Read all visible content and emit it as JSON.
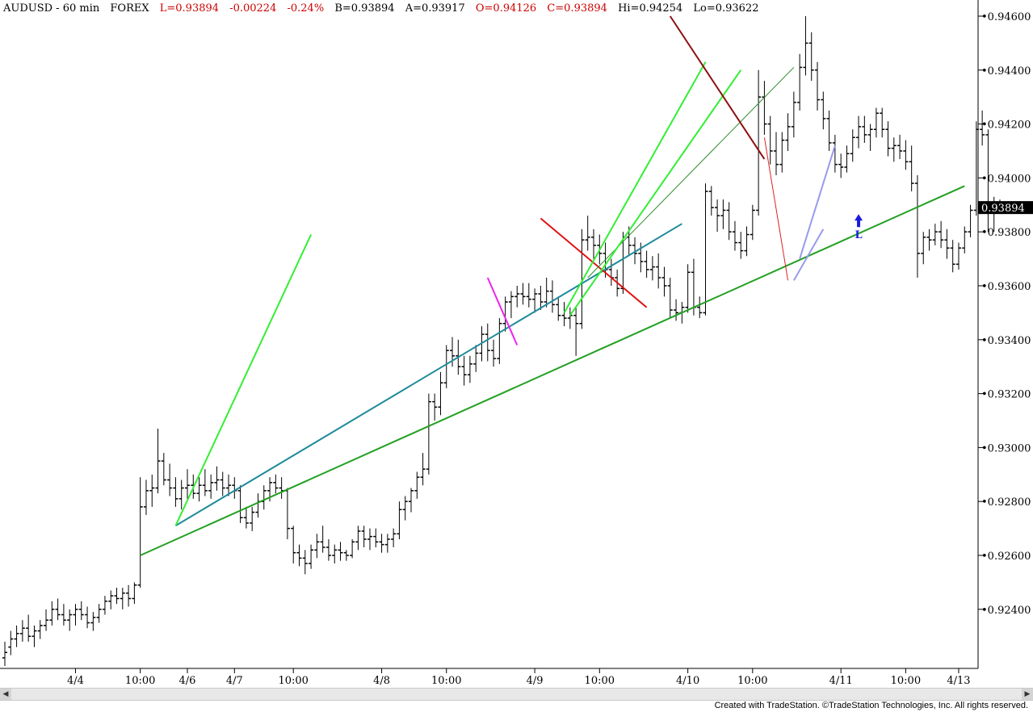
{
  "header": {
    "symbol": "AUDUSD - 60 min",
    "market": "FOREX",
    "last": "L=0.93894",
    "change": "-0.00224",
    "pct": "-0.24%",
    "bid": "B=0.93894",
    "ask": "A=0.93917",
    "open": "O=0.94126",
    "close": "C=0.93894",
    "high": "Hi=0.94254",
    "low": "Lo=0.93622"
  },
  "current_price_label": "0.93894",
  "signal_label": "L",
  "footer": "Created with TradeStation. ©TradeStation Technologies, Inc. All rights reserved.",
  "chart_data": {
    "type": "ohlc",
    "ylim": [
      0.922,
      0.9463
    ],
    "y_ticks": [
      "0.94600",
      "0.94400",
      "0.94200",
      "0.94000",
      "0.93800",
      "0.93600",
      "0.93400",
      "0.93200",
      "0.93000",
      "0.92800",
      "0.92600",
      "0.92400"
    ],
    "x_ticks": [
      "4/4",
      "10:00",
      "4/6",
      "4/7",
      "10:00",
      "4/8",
      "10:00",
      "4/9",
      "10:00",
      "4/10",
      "10:00",
      "4/11",
      "10:00",
      "4/13"
    ],
    "bars": [
      [
        0.9222,
        0.9228,
        0.9219,
        0.9224
      ],
      [
        0.9226,
        0.9232,
        0.9223,
        0.9229
      ],
      [
        0.9229,
        0.9234,
        0.9226,
        0.9231
      ],
      [
        0.9231,
        0.9236,
        0.9228,
        0.9233
      ],
      [
        0.9233,
        0.9238,
        0.9228,
        0.923
      ],
      [
        0.923,
        0.9234,
        0.9226,
        0.9232
      ],
      [
        0.9232,
        0.9236,
        0.9229,
        0.9234
      ],
      [
        0.9234,
        0.924,
        0.9232,
        0.9236
      ],
      [
        0.9236,
        0.9243,
        0.9234,
        0.924
      ],
      [
        0.924,
        0.9244,
        0.9236,
        0.9238
      ],
      [
        0.9238,
        0.9242,
        0.9234,
        0.9236
      ],
      [
        0.9236,
        0.924,
        0.9232,
        0.9238
      ],
      [
        0.9238,
        0.9242,
        0.9234,
        0.924
      ],
      [
        0.924,
        0.9243,
        0.9236,
        0.9238
      ],
      [
        0.9238,
        0.9241,
        0.9233,
        0.9235
      ],
      [
        0.9235,
        0.9239,
        0.9232,
        0.9237
      ],
      [
        0.9237,
        0.9242,
        0.9235,
        0.924
      ],
      [
        0.924,
        0.9245,
        0.9238,
        0.9243
      ],
      [
        0.9243,
        0.9247,
        0.924,
        0.9245
      ],
      [
        0.9245,
        0.9248,
        0.9242,
        0.9244
      ],
      [
        0.9244,
        0.9248,
        0.924,
        0.9246
      ],
      [
        0.9246,
        0.9249,
        0.9241,
        0.9244
      ],
      [
        0.9244,
        0.925,
        0.9242,
        0.9249
      ],
      [
        0.9249,
        0.9289,
        0.9248,
        0.9278
      ],
      [
        0.9278,
        0.9288,
        0.9275,
        0.9284
      ],
      [
        0.9284,
        0.929,
        0.9278,
        0.9285
      ],
      [
        0.9285,
        0.9307,
        0.9283,
        0.9295
      ],
      [
        0.9295,
        0.9298,
        0.9286,
        0.9288
      ],
      [
        0.9288,
        0.9294,
        0.9282,
        0.9285
      ],
      [
        0.9285,
        0.9289,
        0.9278,
        0.9281
      ],
      [
        0.9281,
        0.9288,
        0.9277,
        0.9285
      ],
      [
        0.9285,
        0.9292,
        0.9281,
        0.9286
      ],
      [
        0.9286,
        0.929,
        0.9281,
        0.9283
      ],
      [
        0.9283,
        0.9289,
        0.928,
        0.9286
      ],
      [
        0.9286,
        0.9292,
        0.9282,
        0.9284
      ],
      [
        0.9284,
        0.929,
        0.9281,
        0.9287
      ],
      [
        0.9287,
        0.9293,
        0.9284,
        0.9288
      ],
      [
        0.9288,
        0.9291,
        0.9282,
        0.9285
      ],
      [
        0.9285,
        0.929,
        0.9282,
        0.9286
      ],
      [
        0.9286,
        0.9289,
        0.9281,
        0.9284
      ],
      [
        0.9284,
        0.9286,
        0.9272,
        0.9274
      ],
      [
        0.9274,
        0.9278,
        0.927,
        0.9272
      ],
      [
        0.9272,
        0.9278,
        0.9269,
        0.9276
      ],
      [
        0.9276,
        0.9283,
        0.9274,
        0.928
      ],
      [
        0.928,
        0.9286,
        0.9277,
        0.9284
      ],
      [
        0.9284,
        0.9289,
        0.928,
        0.9287
      ],
      [
        0.9287,
        0.929,
        0.9283,
        0.9285
      ],
      [
        0.9285,
        0.9289,
        0.9281,
        0.9284
      ],
      [
        0.9284,
        0.9285,
        0.9266,
        0.927
      ],
      [
        0.927,
        0.9271,
        0.9257,
        0.9261
      ],
      [
        0.9261,
        0.9264,
        0.9256,
        0.9259
      ],
      [
        0.9259,
        0.9262,
        0.9253,
        0.9257
      ],
      [
        0.9257,
        0.9264,
        0.9255,
        0.9262
      ],
      [
        0.9262,
        0.9268,
        0.9259,
        0.9265
      ],
      [
        0.9265,
        0.9271,
        0.9261,
        0.9263
      ],
      [
        0.9263,
        0.9266,
        0.9258,
        0.926
      ],
      [
        0.926,
        0.9264,
        0.9257,
        0.9262
      ],
      [
        0.9262,
        0.9265,
        0.9258,
        0.9261
      ],
      [
        0.9261,
        0.9262,
        0.9258,
        0.926
      ],
      [
        0.926,
        0.9266,
        0.9259,
        0.9265
      ],
      [
        0.9265,
        0.9271,
        0.9262,
        0.9269
      ],
      [
        0.9269,
        0.9271,
        0.9263,
        0.9266
      ],
      [
        0.9266,
        0.927,
        0.9262,
        0.9267
      ],
      [
        0.9267,
        0.927,
        0.9263,
        0.9265
      ],
      [
        0.9265,
        0.9268,
        0.9261,
        0.9264
      ],
      [
        0.9264,
        0.9268,
        0.9261,
        0.9266
      ],
      [
        0.9266,
        0.927,
        0.9263,
        0.9268
      ],
      [
        0.9268,
        0.928,
        0.9266,
        0.9277
      ],
      [
        0.9277,
        0.9282,
        0.9273,
        0.928
      ],
      [
        0.928,
        0.9285,
        0.9276,
        0.9284
      ],
      [
        0.9284,
        0.9291,
        0.9281,
        0.9289
      ],
      [
        0.9289,
        0.9298,
        0.9286,
        0.9292
      ],
      [
        0.9292,
        0.932,
        0.929,
        0.9317
      ],
      [
        0.9317,
        0.932,
        0.931,
        0.9315
      ],
      [
        0.9315,
        0.9328,
        0.9312,
        0.9324
      ],
      [
        0.9324,
        0.9338,
        0.9322,
        0.9336
      ],
      [
        0.9336,
        0.9341,
        0.933,
        0.9334
      ],
      [
        0.9334,
        0.934,
        0.9327,
        0.933
      ],
      [
        0.933,
        0.9334,
        0.9323,
        0.9327
      ],
      [
        0.9327,
        0.9334,
        0.9324,
        0.9331
      ],
      [
        0.9331,
        0.9338,
        0.9328,
        0.9335
      ],
      [
        0.9335,
        0.9345,
        0.9332,
        0.9342
      ],
      [
        0.9342,
        0.9346,
        0.9332,
        0.9336
      ],
      [
        0.9336,
        0.934,
        0.933,
        0.9333
      ],
      [
        0.9333,
        0.9348,
        0.9331,
        0.9346
      ],
      [
        0.9346,
        0.9356,
        0.9343,
        0.9354
      ],
      [
        0.9354,
        0.9358,
        0.9348,
        0.9356
      ],
      [
        0.9356,
        0.936,
        0.9352,
        0.9357
      ],
      [
        0.9357,
        0.9361,
        0.9353,
        0.9356
      ],
      [
        0.9356,
        0.9361,
        0.9352,
        0.9355
      ],
      [
        0.9355,
        0.9359,
        0.935,
        0.9357
      ],
      [
        0.9357,
        0.936,
        0.9351,
        0.9354
      ],
      [
        0.9354,
        0.9363,
        0.9352,
        0.9358
      ],
      [
        0.9358,
        0.9362,
        0.935,
        0.9353
      ],
      [
        0.9353,
        0.9356,
        0.9347,
        0.9349
      ],
      [
        0.9349,
        0.9354,
        0.9345,
        0.9348
      ],
      [
        0.9348,
        0.9352,
        0.9344,
        0.9349
      ],
      [
        0.9349,
        0.9352,
        0.9334,
        0.9346
      ],
      [
        0.9346,
        0.9381,
        0.9344,
        0.9377
      ],
      [
        0.9377,
        0.9386,
        0.9373,
        0.9378
      ],
      [
        0.9378,
        0.9381,
        0.937,
        0.9375
      ],
      [
        0.9375,
        0.9379,
        0.9368,
        0.9372
      ],
      [
        0.9372,
        0.9376,
        0.9363,
        0.9366
      ],
      [
        0.9366,
        0.937,
        0.936,
        0.9363
      ],
      [
        0.9363,
        0.9366,
        0.9356,
        0.9359
      ],
      [
        0.9359,
        0.938,
        0.9357,
        0.9378
      ],
      [
        0.9378,
        0.9382,
        0.9371,
        0.9375
      ],
      [
        0.9375,
        0.9378,
        0.9368,
        0.9372
      ],
      [
        0.9372,
        0.9376,
        0.9365,
        0.9369
      ],
      [
        0.9369,
        0.9373,
        0.9363,
        0.9366
      ],
      [
        0.9366,
        0.9371,
        0.9362,
        0.9367
      ],
      [
        0.9367,
        0.9372,
        0.9359,
        0.9363
      ],
      [
        0.9363,
        0.9367,
        0.9356,
        0.936
      ],
      [
        0.936,
        0.9363,
        0.9348,
        0.9351
      ],
      [
        0.9351,
        0.9355,
        0.9347,
        0.935
      ],
      [
        0.935,
        0.9354,
        0.9346,
        0.9352
      ],
      [
        0.9352,
        0.9368,
        0.935,
        0.9365
      ],
      [
        0.9365,
        0.937,
        0.9349,
        0.9352
      ],
      [
        0.9352,
        0.9356,
        0.9348,
        0.935
      ],
      [
        0.935,
        0.9398,
        0.9349,
        0.9395
      ],
      [
        0.9395,
        0.9397,
        0.9386,
        0.9389
      ],
      [
        0.9389,
        0.9392,
        0.938,
        0.9386
      ],
      [
        0.9386,
        0.9392,
        0.9381,
        0.9388
      ],
      [
        0.9388,
        0.9391,
        0.9377,
        0.938
      ],
      [
        0.938,
        0.9384,
        0.9373,
        0.9376
      ],
      [
        0.9376,
        0.938,
        0.937,
        0.9373
      ],
      [
        0.9373,
        0.9382,
        0.9371,
        0.9379
      ],
      [
        0.9379,
        0.939,
        0.9377,
        0.9388
      ],
      [
        0.9388,
        0.944,
        0.9386,
        0.943
      ],
      [
        0.943,
        0.9436,
        0.9416,
        0.942
      ],
      [
        0.942,
        0.9423,
        0.9405,
        0.941
      ],
      [
        0.941,
        0.9417,
        0.9401,
        0.9405
      ],
      [
        0.9405,
        0.9417,
        0.9402,
        0.9414
      ],
      [
        0.9414,
        0.9424,
        0.941,
        0.9419
      ],
      [
        0.9419,
        0.9432,
        0.9415,
        0.9428
      ],
      [
        0.9428,
        0.9446,
        0.9425,
        0.9441
      ],
      [
        0.9441,
        0.946,
        0.9438,
        0.945
      ],
      [
        0.945,
        0.9454,
        0.9436,
        0.944
      ],
      [
        0.944,
        0.9443,
        0.9425,
        0.9429
      ],
      [
        0.9429,
        0.9432,
        0.9418,
        0.9422
      ],
      [
        0.9422,
        0.9425,
        0.941,
        0.9413
      ],
      [
        0.9413,
        0.9416,
        0.9402,
        0.9405
      ],
      [
        0.9405,
        0.9409,
        0.94,
        0.9404
      ],
      [
        0.9404,
        0.9412,
        0.9402,
        0.9409
      ],
      [
        0.9409,
        0.9418,
        0.9406,
        0.9415
      ],
      [
        0.9415,
        0.9423,
        0.9411,
        0.9419
      ],
      [
        0.9419,
        0.9423,
        0.9413,
        0.9416
      ],
      [
        0.9416,
        0.942,
        0.941,
        0.9418
      ],
      [
        0.9418,
        0.9426,
        0.9415,
        0.9424
      ],
      [
        0.9424,
        0.9426,
        0.9415,
        0.9418
      ],
      [
        0.9418,
        0.9421,
        0.9408,
        0.9411
      ],
      [
        0.9411,
        0.9415,
        0.9406,
        0.9412
      ],
      [
        0.9412,
        0.9416,
        0.9407,
        0.941
      ],
      [
        0.941,
        0.9414,
        0.9403,
        0.9406
      ],
      [
        0.9406,
        0.9412,
        0.9395,
        0.9398
      ],
      [
        0.9398,
        0.9401,
        0.9363,
        0.9372
      ],
      [
        0.9372,
        0.938,
        0.9368,
        0.9378
      ],
      [
        0.9378,
        0.9381,
        0.9373,
        0.9377
      ],
      [
        0.9377,
        0.9383,
        0.9375,
        0.938
      ],
      [
        0.938,
        0.9384,
        0.9374,
        0.9377
      ],
      [
        0.9377,
        0.9381,
        0.937,
        0.9374
      ],
      [
        0.9374,
        0.9377,
        0.9365,
        0.9368
      ],
      [
        0.9368,
        0.9376,
        0.9366,
        0.9374
      ],
      [
        0.9374,
        0.9382,
        0.9372,
        0.938
      ],
      [
        0.938,
        0.939,
        0.9378,
        0.9388
      ],
      [
        0.9388,
        0.9421,
        0.9386,
        0.9418
      ],
      [
        0.9418,
        0.9425,
        0.9412,
        0.9416
      ],
      [
        0.9416,
        0.9418,
        0.938,
        0.9388
      ],
      [
        0.9388,
        0.9393,
        0.938,
        0.939
      ],
      [
        0.939,
        0.9392,
        0.9388,
        0.9389
      ]
    ],
    "trendlines": [
      {
        "color": "#22a022",
        "width": 2,
        "from": [
          23,
          0.926
        ],
        "to": [
          163,
          0.9397
        ]
      },
      {
        "color": "#1e8a9a",
        "width": 2,
        "from": [
          29,
          0.9271
        ],
        "to": [
          115,
          0.9383
        ]
      },
      {
        "color": "#33ee33",
        "width": 2,
        "from": [
          29,
          0.9271
        ],
        "to": [
          52,
          0.9379
        ]
      },
      {
        "color": "#ee22ee",
        "width": 2,
        "from": [
          82,
          0.9363
        ],
        "to": [
          87,
          0.9338
        ]
      },
      {
        "color": "#e01010",
        "width": 2,
        "from": [
          91,
          0.9385
        ],
        "to": [
          109,
          0.9352
        ]
      },
      {
        "color": "#33ee33",
        "width": 2,
        "from": [
          95,
          0.935
        ],
        "to": [
          119,
          0.9443
        ]
      },
      {
        "color": "#2e8b2e",
        "width": 1,
        "from": [
          99,
          0.9363
        ],
        "to": [
          134,
          0.9441
        ]
      },
      {
        "color": "#33ee33",
        "width": 2,
        "from": [
          96,
          0.9349
        ],
        "to": [
          125,
          0.944
        ]
      },
      {
        "color": "#8b1010",
        "width": 2,
        "from": [
          113,
          0.946
        ],
        "to": [
          129,
          0.9407
        ]
      },
      {
        "color": "#e02020",
        "width": 1,
        "from": [
          129,
          0.9415
        ],
        "to": [
          133,
          0.9362
        ]
      },
      {
        "color": "#9999ee",
        "width": 2,
        "from": [
          134,
          0.9362
        ],
        "to": [
          139,
          0.9381
        ]
      },
      {
        "color": "#9999ee",
        "width": 2,
        "from": [
          135,
          0.937
        ],
        "to": [
          141,
          0.9412
        ]
      }
    ]
  }
}
